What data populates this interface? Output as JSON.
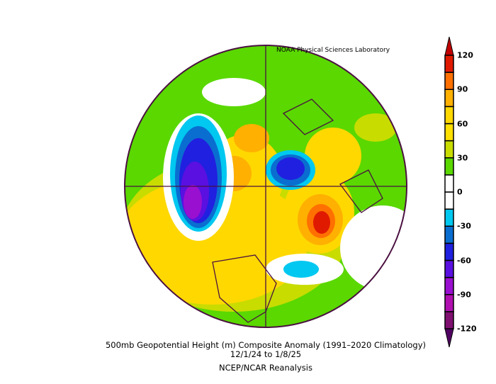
{
  "credit": "NOAA Physical Sciences Laboratory",
  "title": "500mb Geopotential Height (m) Composite Anomaly (1991–2020 Climatology)",
  "dates": "12/1/24  to 1/8/25",
  "source": "NCEP/NCAR Reanalysis",
  "colorbar": {
    "ticks": [
      "120",
      "90",
      "60",
      "30",
      "0",
      "-30",
      "-60",
      "-90",
      "-120"
    ],
    "levels": [
      -120,
      -105,
      -90,
      -75,
      -60,
      -45,
      -30,
      -15,
      0,
      15,
      30,
      45,
      60,
      75,
      90,
      105,
      120
    ],
    "colors": [
      "#801070",
      "#b010b0",
      "#9a10d0",
      "#5a10e0",
      "#2020e0",
      "#0a6ed0",
      "#00c8f0",
      "#ffffff",
      "#ffffff",
      "#5ad800",
      "#c8dc00",
      "#ffe000",
      "#ffd800",
      "#ffb000",
      "#ff7000",
      "#e01a00"
    ],
    "under_color": "#500060",
    "over_color": "#c00000"
  }
}
